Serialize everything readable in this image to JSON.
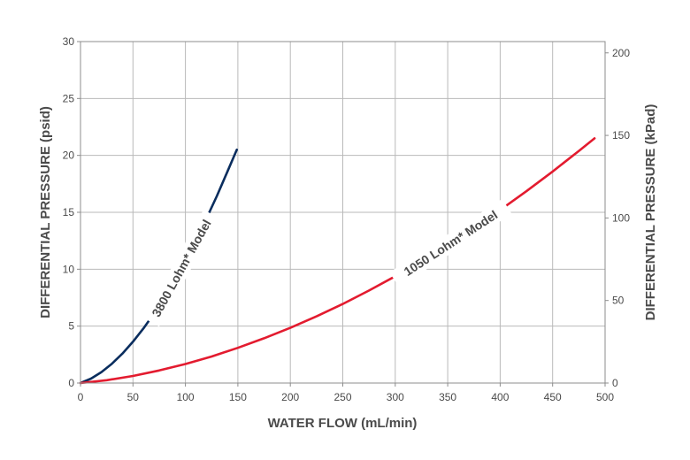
{
  "chart_data": {
    "type": "line",
    "title": "",
    "xlabel": "WATER FLOW (mL/min)",
    "ylabel": "DIFFERENTIAL PRESSURE (psid)",
    "y2label": "DIFFERENTIAL PRESSURE (kPad)",
    "xlim": [
      0,
      500
    ],
    "ylim": [
      0,
      30
    ],
    "y2lim": [
      0,
      206.84
    ],
    "x_ticks": [
      0,
      50,
      100,
      150,
      200,
      250,
      300,
      350,
      400,
      450,
      500
    ],
    "y_ticks": [
      0,
      5,
      10,
      15,
      20,
      25,
      30
    ],
    "y2_ticks": [
      0,
      50,
      100,
      150,
      200
    ],
    "grid": true,
    "legend": "none",
    "series": [
      {
        "name": "3800 Lohm* Model",
        "color": "#0a2d5e",
        "x": [
          0,
          10,
          20,
          30,
          40,
          50,
          60,
          70,
          80,
          90,
          100,
          110,
          120,
          130,
          140,
          149
        ],
        "y": [
          0,
          0.39,
          0.96,
          1.7,
          2.59,
          3.63,
          4.8,
          6.1,
          7.53,
          9.08,
          10.75,
          12.54,
          14.44,
          16.44,
          18.56,
          20.5
        ]
      },
      {
        "name": "1050 Lohm* Model",
        "color": "#e31b2f",
        "x": [
          0,
          25,
          50,
          75,
          100,
          125,
          150,
          175,
          200,
          225,
          250,
          275,
          300,
          325,
          350,
          375,
          400,
          425,
          450,
          475,
          490
        ],
        "y": [
          0,
          0.25,
          0.62,
          1.1,
          1.67,
          2.33,
          3.09,
          3.93,
          4.85,
          5.86,
          6.95,
          8.13,
          9.38,
          10.72,
          12.13,
          13.63,
          15.2,
          16.85,
          18.58,
          20.39,
          21.5
        ]
      }
    ]
  }
}
